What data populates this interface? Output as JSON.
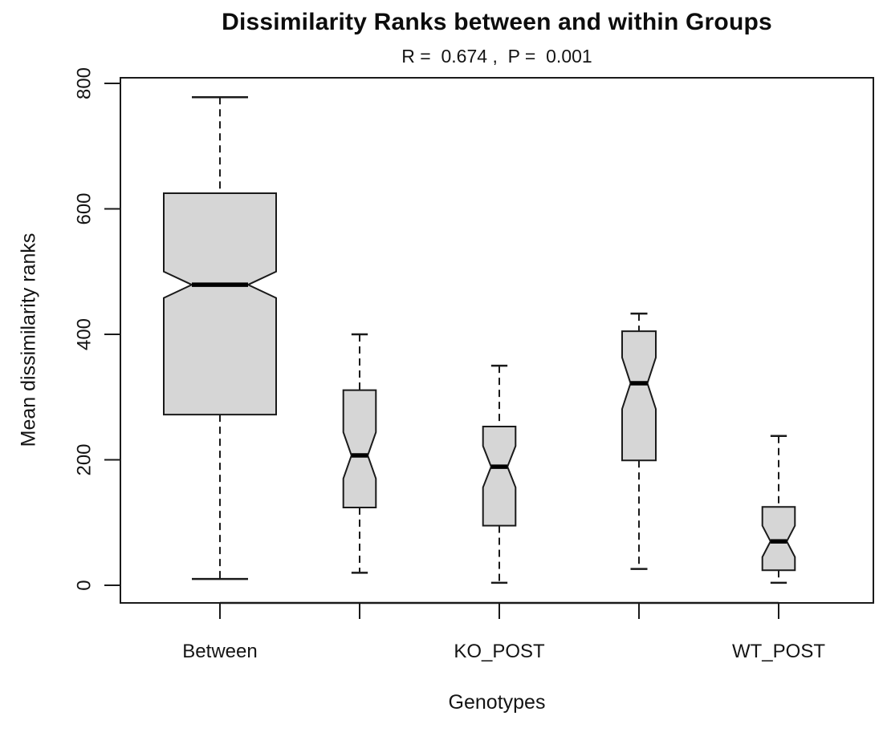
{
  "chart_data": {
    "type": "boxplot",
    "title": "Dissimilarity Ranks between and within Groups",
    "subtitle": "R =  0.674 ,  P =  0.001",
    "statistics": {
      "R": 0.674,
      "P": 0.001
    },
    "xlabel": "Genotypes",
    "ylabel": "Mean dissimilarity ranks",
    "ylim": [
      0,
      800
    ],
    "yticks": [
      0,
      200,
      400,
      600,
      800
    ],
    "notched": true,
    "variable_width": true,
    "grid": false,
    "legend": null,
    "colors": {
      "box_fill": "#d6d6d6",
      "line": "#1a1a1a",
      "median": "#000000",
      "background": "#ffffff"
    },
    "groups": [
      {
        "label": "Between",
        "whisker_low": 10,
        "q1": 272,
        "median": 479,
        "q3": 625,
        "whisker_high": 778,
        "notch_low": 458,
        "notch_high": 500,
        "rel_width": 1.0
      },
      {
        "label": "",
        "whisker_low": 20,
        "q1": 124,
        "median": 207,
        "q3": 311,
        "whisker_high": 400,
        "notch_low": 170,
        "notch_high": 244,
        "rel_width": 0.29
      },
      {
        "label": "KO_POST",
        "whisker_low": 4,
        "q1": 95,
        "median": 189,
        "q3": 253,
        "whisker_high": 350,
        "notch_low": 156,
        "notch_high": 222,
        "rel_width": 0.29
      },
      {
        "label": "",
        "whisker_low": 26,
        "q1": 199,
        "median": 322,
        "q3": 405,
        "whisker_high": 433,
        "notch_low": 281,
        "notch_high": 363,
        "rel_width": 0.3
      },
      {
        "label": "WT_POST",
        "whisker_low": 4,
        "q1": 24,
        "median": 70,
        "q3": 125,
        "whisker_high": 238,
        "notch_low": 45,
        "notch_high": 95,
        "rel_width": 0.29
      }
    ]
  }
}
